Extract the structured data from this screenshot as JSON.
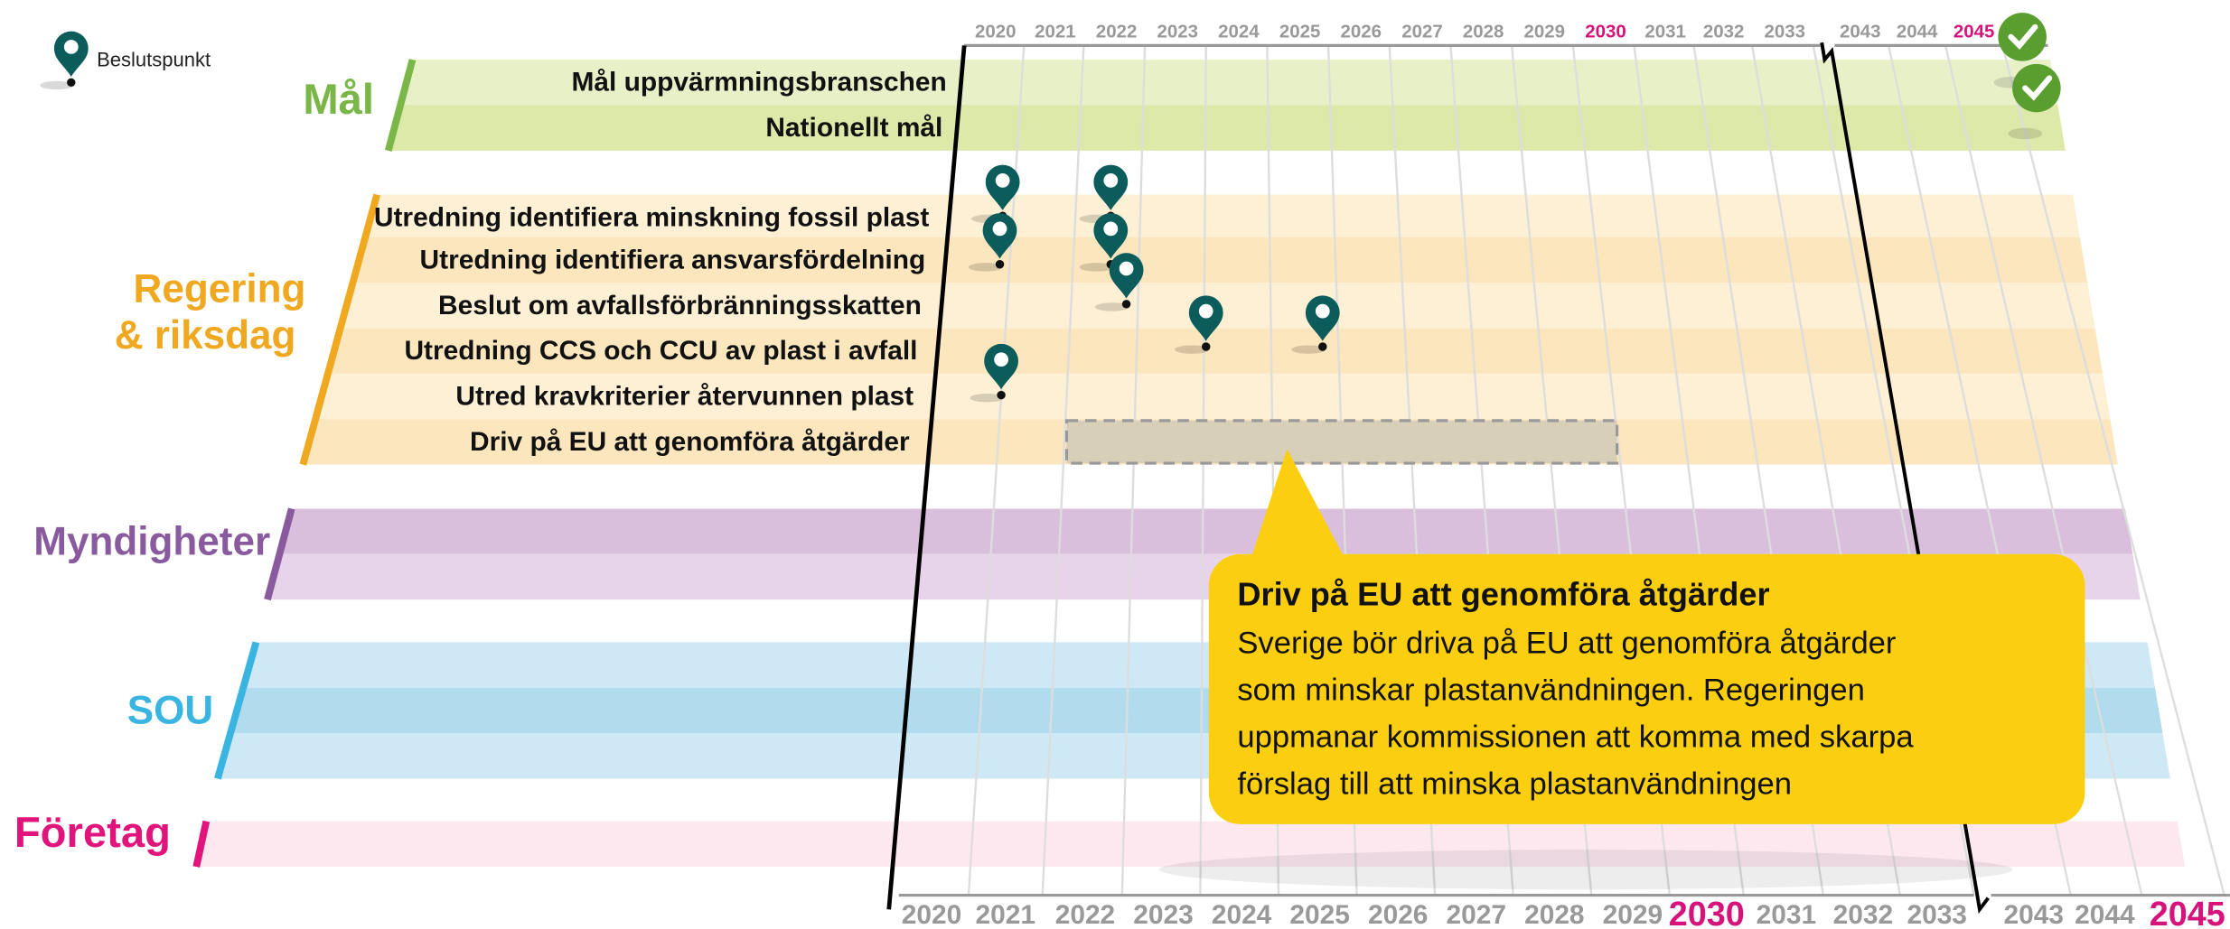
{
  "legend": {
    "label": "Beslutspunkt"
  },
  "groups": [
    {
      "label": [
        "Mål"
      ],
      "rows": [
        "Mål uppvärmningsbranschen",
        "Nationellt mål"
      ]
    },
    {
      "label": [
        "Regering",
        "& riksdag"
      ],
      "rows": [
        "Utredning identifiera minskning fossil plast",
        "Utredning identifiera ansvarsfördelning",
        "Beslut om avfallsförbränningsskatten",
        "Utredning CCS och CCU av plast i avfall",
        "Utred kravkriterier återvunnen plast",
        "Driv på EU att genomföra åtgärder"
      ]
    },
    {
      "label": [
        "Myndigheter"
      ],
      "rows": []
    },
    {
      "label": [
        "SOU"
      ],
      "rows": []
    },
    {
      "label": [
        "Företag"
      ],
      "rows": []
    }
  ],
  "years_top": [
    {
      "label": "2020"
    },
    {
      "label": "2021"
    },
    {
      "label": "2022"
    },
    {
      "label": "2023"
    },
    {
      "label": "2024"
    },
    {
      "label": "2025"
    },
    {
      "label": "2026"
    },
    {
      "label": "2027"
    },
    {
      "label": "2028"
    },
    {
      "label": "2029"
    },
    {
      "label": "2030",
      "highlight": true
    },
    {
      "label": "2031"
    },
    {
      "label": "2032"
    },
    {
      "label": "2033"
    },
    {
      "label": "2043"
    },
    {
      "label": "2044"
    },
    {
      "label": "2045",
      "highlight": true
    }
  ],
  "years_bottom": [
    {
      "label": "2020"
    },
    {
      "label": "2021"
    },
    {
      "label": "2022"
    },
    {
      "label": "2023"
    },
    {
      "label": "2024"
    },
    {
      "label": "2025"
    },
    {
      "label": "2026"
    },
    {
      "label": "2027"
    },
    {
      "label": "2028"
    },
    {
      "label": "2029"
    },
    {
      "label": "2030",
      "highlight": true
    },
    {
      "label": "2031"
    },
    {
      "label": "2032"
    },
    {
      "label": "2033"
    },
    {
      "label": "2043"
    },
    {
      "label": "2044"
    },
    {
      "label": "2045",
      "highlight": true
    }
  ],
  "callout": {
    "title": "Driv på EU att genomföra åtgärder",
    "lines": [
      "Sverige bör driva på EU att genomföra åtgärder",
      "som minskar plastanvändningen. Regeringen",
      "uppmanar kommissionen att komma med skarpa",
      "förslag till att minska plastanvändningen"
    ]
  }
}
